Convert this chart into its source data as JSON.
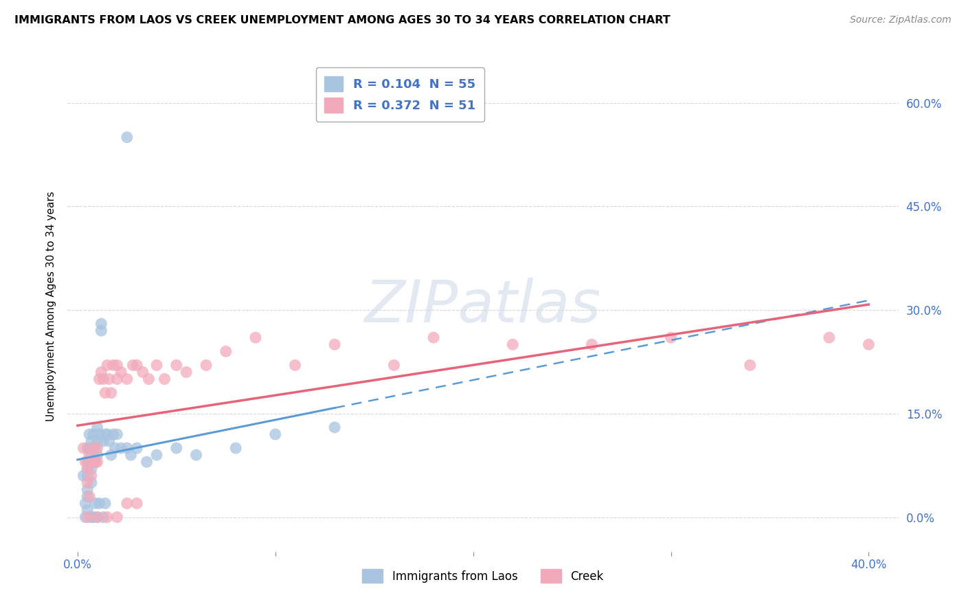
{
  "title": "IMMIGRANTS FROM LAOS VS CREEK UNEMPLOYMENT AMONG AGES 30 TO 34 YEARS CORRELATION CHART",
  "source": "Source: ZipAtlas.com",
  "ylabel": "Unemployment Among Ages 30 to 34 years",
  "series1_color": "#a8c4e0",
  "series2_color": "#f2aabb",
  "line1_color": "#5b9bd5",
  "line2_color": "#e8637a",
  "watermark_color": "#ccd8e8",
  "background_color": "#ffffff",
  "grid_color": "#c8c8c8",
  "legend_r1": "R = 0.104  N = 55",
  "legend_r2": "R = 0.372  N = 51",
  "xlim": [
    -0.005,
    0.415
  ],
  "ylim": [
    -0.05,
    0.66
  ],
  "yticks": [
    0.0,
    0.15,
    0.3,
    0.45,
    0.6
  ],
  "ytick_labels": [
    "0.0%",
    "15.0%",
    "30.0%",
    "45.0%",
    "60.0%"
  ],
  "xticks": [
    0.0,
    0.1,
    0.2,
    0.3,
    0.4
  ],
  "xtick_labels": [
    "0.0%",
    "",
    "",
    "",
    "40.0%"
  ],
  "laos_x": [
    0.003,
    0.004,
    0.004,
    0.005,
    0.005,
    0.005,
    0.005,
    0.005,
    0.005,
    0.005,
    0.006,
    0.006,
    0.006,
    0.007,
    0.007,
    0.007,
    0.007,
    0.007,
    0.008,
    0.008,
    0.008,
    0.008,
    0.009,
    0.009,
    0.009,
    0.01,
    0.01,
    0.01,
    0.01,
    0.011,
    0.011,
    0.012,
    0.012,
    0.013,
    0.013,
    0.014,
    0.014,
    0.015,
    0.016,
    0.017,
    0.018,
    0.019,
    0.02,
    0.022,
    0.025,
    0.027,
    0.03,
    0.035,
    0.04,
    0.05,
    0.06,
    0.08,
    0.1,
    0.13,
    0.025
  ],
  "laos_y": [
    0.06,
    0.02,
    0.0,
    0.08,
    0.1,
    0.07,
    0.06,
    0.04,
    0.03,
    0.01,
    0.12,
    0.1,
    0.08,
    0.11,
    0.09,
    0.07,
    0.05,
    0.0,
    0.12,
    0.1,
    0.08,
    0.0,
    0.1,
    0.08,
    0.02,
    0.13,
    0.11,
    0.09,
    0.0,
    0.12,
    0.02,
    0.27,
    0.28,
    0.11,
    0.0,
    0.12,
    0.02,
    0.12,
    0.11,
    0.09,
    0.12,
    0.1,
    0.12,
    0.1,
    0.1,
    0.09,
    0.1,
    0.08,
    0.09,
    0.1,
    0.09,
    0.1,
    0.12,
    0.13,
    0.55
  ],
  "creek_x": [
    0.003,
    0.004,
    0.005,
    0.005,
    0.006,
    0.006,
    0.007,
    0.007,
    0.008,
    0.009,
    0.01,
    0.01,
    0.011,
    0.012,
    0.013,
    0.014,
    0.015,
    0.016,
    0.017,
    0.018,
    0.02,
    0.02,
    0.022,
    0.025,
    0.028,
    0.03,
    0.033,
    0.036,
    0.04,
    0.044,
    0.05,
    0.055,
    0.065,
    0.075,
    0.09,
    0.11,
    0.13,
    0.16,
    0.18,
    0.22,
    0.26,
    0.3,
    0.34,
    0.38,
    0.4,
    0.01,
    0.015,
    0.02,
    0.025,
    0.03,
    0.005
  ],
  "creek_y": [
    0.1,
    0.08,
    0.07,
    0.05,
    0.09,
    0.03,
    0.08,
    0.06,
    0.1,
    0.08,
    0.1,
    0.08,
    0.2,
    0.21,
    0.2,
    0.18,
    0.22,
    0.2,
    0.18,
    0.22,
    0.22,
    0.2,
    0.21,
    0.2,
    0.22,
    0.22,
    0.21,
    0.2,
    0.22,
    0.2,
    0.22,
    0.21,
    0.22,
    0.24,
    0.26,
    0.22,
    0.25,
    0.22,
    0.26,
    0.25,
    0.25,
    0.26,
    0.22,
    0.26,
    0.25,
    0.0,
    0.0,
    0.0,
    0.02,
    0.02,
    0.0
  ]
}
